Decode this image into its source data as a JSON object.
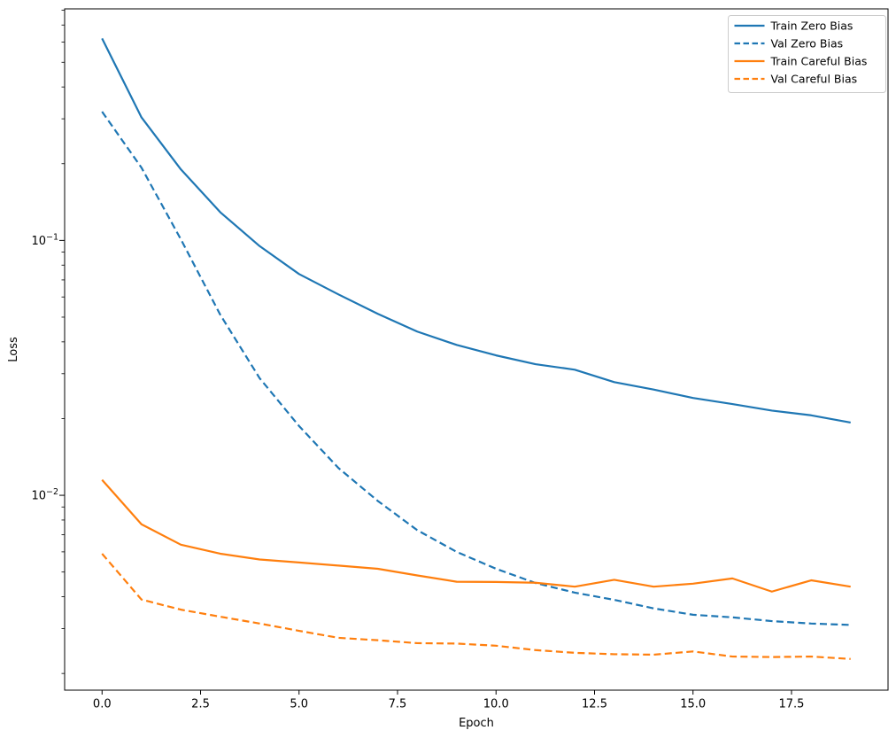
{
  "figure": {
    "background": "#ffffff",
    "spine_color": "#000000",
    "text_color": "#000000"
  },
  "chart_data": {
    "type": "line",
    "title": "",
    "xlabel": "Epoch",
    "ylabel": "Loss",
    "xscale": "linear",
    "yscale": "log",
    "grid": false,
    "xlim": [
      -0.95,
      19.95
    ],
    "ylim": [
      0.00172,
      0.81
    ],
    "x": [
      0,
      1,
      2,
      3,
      4,
      5,
      6,
      7,
      8,
      9,
      10,
      11,
      12,
      13,
      14,
      15,
      16,
      17,
      18,
      19
    ],
    "series": [
      {
        "name": "Train Zero Bias",
        "color": "#1f77b4",
        "style": "solid",
        "values": [
          0.62,
          0.304,
          0.19,
          0.129,
          0.095,
          0.0738,
          0.0614,
          0.0515,
          0.0439,
          0.0389,
          0.0354,
          0.0327,
          0.0311,
          0.0278,
          0.026,
          0.0241,
          0.0228,
          0.0215,
          0.0206,
          0.0193
        ]
      },
      {
        "name": "Val Zero Bias",
        "color": "#1f77b4",
        "style": "dashed",
        "values": [
          0.32,
          0.193,
          0.101,
          0.0511,
          0.0288,
          0.0187,
          0.0128,
          0.0095,
          0.0073,
          0.006,
          0.00515,
          0.00453,
          0.00415,
          0.00389,
          0.0036,
          0.0034,
          0.00332,
          0.00321,
          0.00314,
          0.0031
        ]
      },
      {
        "name": "Train Careful Bias",
        "color": "#ff7f0e",
        "style": "solid",
        "values": [
          0.0115,
          0.0077,
          0.0064,
          0.0059,
          0.0056,
          0.00545,
          0.0053,
          0.00515,
          0.00485,
          0.00458,
          0.00457,
          0.00454,
          0.00438,
          0.00466,
          0.00438,
          0.0045,
          0.00472,
          0.00419,
          0.00464,
          0.00438
        ]
      },
      {
        "name": "Val Careful Bias",
        "color": "#ff7f0e",
        "style": "dashed",
        "values": [
          0.0059,
          0.0039,
          0.00356,
          0.00334,
          0.00314,
          0.00294,
          0.00276,
          0.0027,
          0.00263,
          0.00262,
          0.00257,
          0.00247,
          0.00241,
          0.00238,
          0.00237,
          0.00244,
          0.00233,
          0.00232,
          0.00233,
          0.00228
        ]
      }
    ],
    "xticks": {
      "values": [
        0,
        2.5,
        5,
        7.5,
        10,
        12.5,
        15,
        17.5
      ],
      "labels": [
        "0.0",
        "2.5",
        "5.0",
        "7.5",
        "10.0",
        "12.5",
        "15.0",
        "17.5"
      ]
    },
    "yticks": {
      "major": [
        {
          "value": 0.1,
          "base": "10",
          "exponent": "−1"
        },
        {
          "value": 0.01,
          "base": "10",
          "exponent": "−2"
        }
      ],
      "minor_decades": [
        -3,
        -2,
        -1
      ],
      "minor_mantissas": [
        2,
        3,
        4,
        5,
        6,
        7,
        8,
        9
      ]
    },
    "legend": {
      "position": "upper right",
      "entries": [
        "Train Zero Bias",
        "Val Zero Bias",
        "Train Careful Bias",
        "Val Careful Bias"
      ],
      "border_color": "#cccccc",
      "background": "#ffffff"
    }
  }
}
